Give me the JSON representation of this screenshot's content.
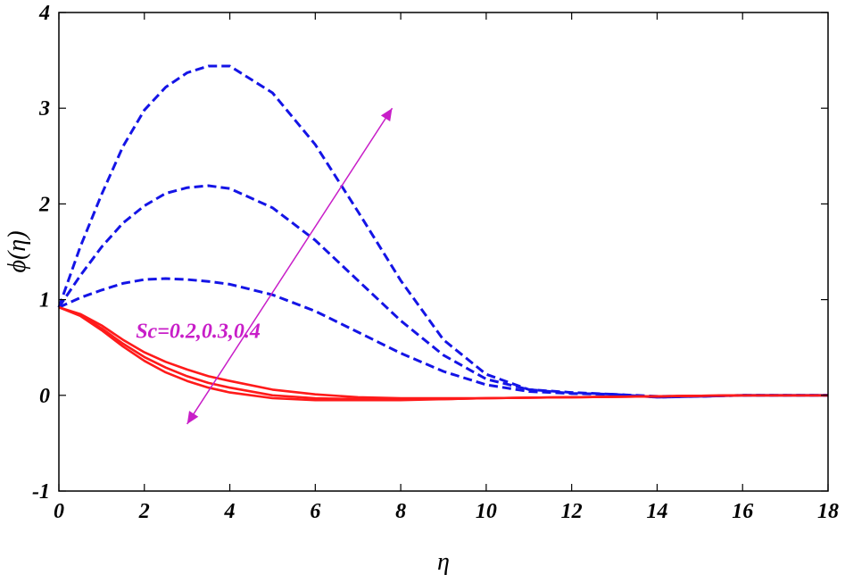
{
  "chart_data": {
    "type": "line",
    "xlabel": "η",
    "ylabel": "ϕ(η)",
    "xlim": [
      0,
      18
    ],
    "ylim": [
      -1,
      4
    ],
    "xticks": [
      0,
      2,
      4,
      6,
      8,
      10,
      12,
      14,
      16,
      18
    ],
    "yticks": [
      -1,
      0,
      1,
      2,
      3,
      4
    ],
    "grid": false,
    "colors": {
      "dashed": "#1414e6",
      "solid": "#ff1a1a",
      "annotation": "#c81ec8"
    },
    "annotation": {
      "text": "Sc=0.2,0.3,0.4",
      "anchor": [
        1.8,
        0.6
      ],
      "arrow_from": [
        3.0,
        -0.3
      ],
      "arrow_to": [
        7.8,
        3.0
      ]
    },
    "series": [
      {
        "style": "dashed",
        "x": [
          0,
          0.5,
          1,
          1.5,
          2,
          2.5,
          3,
          3.5,
          4,
          5,
          6,
          7,
          8,
          9,
          10,
          11,
          12,
          13,
          14,
          15,
          16,
          17,
          18
        ],
        "y": [
          0.92,
          1.02,
          1.1,
          1.17,
          1.21,
          1.22,
          1.21,
          1.19,
          1.16,
          1.05,
          0.88,
          0.66,
          0.44,
          0.25,
          0.11,
          0.04,
          0.02,
          0.01,
          -0.01,
          -0.01,
          0.0,
          0.0,
          0.0
        ]
      },
      {
        "style": "dashed",
        "x": [
          0,
          0.5,
          1,
          1.5,
          2,
          2.5,
          3,
          3.5,
          4,
          5,
          6,
          7,
          8,
          9,
          10,
          11,
          12,
          13,
          14,
          15,
          16,
          17,
          18
        ],
        "y": [
          0.92,
          1.25,
          1.55,
          1.8,
          1.98,
          2.11,
          2.17,
          2.19,
          2.16,
          1.96,
          1.62,
          1.2,
          0.78,
          0.42,
          0.17,
          0.06,
          0.02,
          0.01,
          -0.02,
          -0.01,
          0.0,
          0.0,
          0.0
        ]
      },
      {
        "style": "dashed",
        "x": [
          0,
          0.5,
          1,
          1.5,
          2,
          2.5,
          3,
          3.5,
          4,
          5,
          6,
          7,
          8,
          9,
          10,
          11,
          12,
          13,
          14,
          15,
          16,
          17,
          18
        ],
        "y": [
          0.92,
          1.55,
          2.1,
          2.6,
          2.98,
          3.22,
          3.37,
          3.44,
          3.44,
          3.16,
          2.62,
          1.92,
          1.2,
          0.58,
          0.22,
          0.06,
          0.03,
          0.01,
          -0.02,
          -0.01,
          0.0,
          0.0,
          0.0
        ]
      },
      {
        "style": "solid",
        "x": [
          0,
          0.5,
          1,
          1.5,
          2,
          2.5,
          3,
          3.5,
          4,
          5,
          6,
          7,
          8,
          9,
          10,
          12,
          14,
          16,
          18
        ],
        "y": [
          0.92,
          0.85,
          0.73,
          0.58,
          0.45,
          0.35,
          0.27,
          0.2,
          0.15,
          0.06,
          0.01,
          -0.02,
          -0.03,
          -0.03,
          -0.03,
          -0.02,
          -0.01,
          0.0,
          0.0
        ]
      },
      {
        "style": "solid",
        "x": [
          0,
          0.5,
          1,
          1.5,
          2,
          2.5,
          3,
          3.5,
          4,
          5,
          6,
          7,
          8,
          9,
          10,
          12,
          14,
          16,
          18
        ],
        "y": [
          0.92,
          0.84,
          0.7,
          0.54,
          0.4,
          0.29,
          0.2,
          0.13,
          0.08,
          0.0,
          -0.03,
          -0.04,
          -0.04,
          -0.04,
          -0.03,
          -0.02,
          -0.01,
          0.0,
          0.0
        ]
      },
      {
        "style": "solid",
        "x": [
          0,
          0.5,
          1,
          1.5,
          2,
          2.5,
          3,
          3.5,
          4,
          5,
          6,
          7,
          8,
          9,
          10,
          12,
          14,
          16,
          18
        ],
        "y": [
          0.92,
          0.83,
          0.68,
          0.51,
          0.36,
          0.24,
          0.15,
          0.08,
          0.03,
          -0.03,
          -0.05,
          -0.05,
          -0.05,
          -0.04,
          -0.03,
          -0.02,
          -0.01,
          0.0,
          0.0
        ]
      }
    ]
  }
}
